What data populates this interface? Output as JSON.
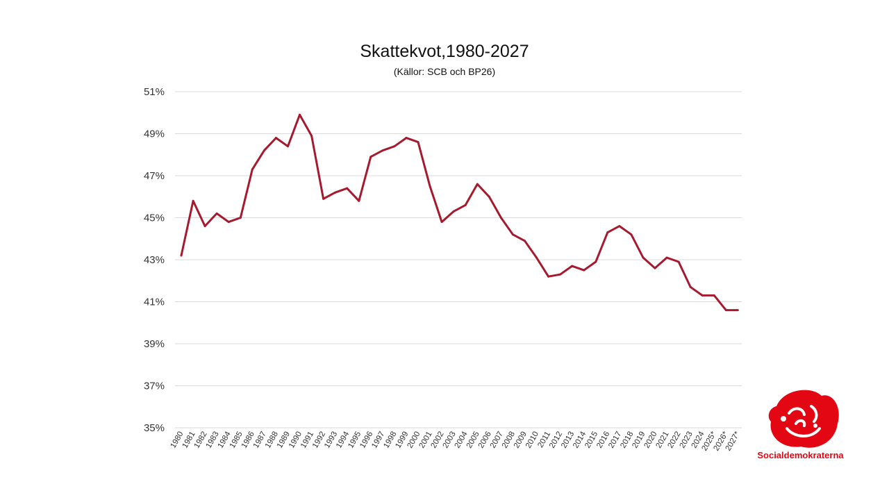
{
  "chart_data": {
    "type": "line",
    "title": "Skattekvot,1980-2027",
    "subtitle": "(Källor: SCB och BP26)",
    "xlabel": "",
    "ylabel": "",
    "ylim": [
      35,
      51
    ],
    "yticks": [
      "51%",
      "49%",
      "47%",
      "45%",
      "43%",
      "41%",
      "39%",
      "37%",
      "35%"
    ],
    "ytick_values": [
      51,
      49,
      47,
      45,
      43,
      41,
      39,
      37,
      35
    ],
    "grid": true,
    "line_color": "#a6192e",
    "categories": [
      "1980",
      "1981",
      "1982",
      "1983",
      "1984",
      "1985",
      "1986",
      "1987",
      "1988",
      "1989",
      "1990",
      "1991",
      "1992",
      "1993",
      "1994",
      "1995",
      "1996",
      "1997",
      "1998",
      "1999",
      "2000",
      "2001",
      "2002",
      "2003",
      "2004",
      "2005",
      "2006",
      "2007",
      "2008",
      "2009",
      "2010",
      "2011",
      "2012",
      "2013",
      "2014",
      "2015",
      "2016",
      "2017",
      "2018",
      "2019",
      "2020",
      "2021",
      "2022",
      "2023",
      "2024",
      "2025*",
      "2026*",
      "2027*"
    ],
    "values": [
      43.2,
      45.8,
      44.6,
      45.2,
      44.8,
      45.0,
      47.3,
      48.2,
      48.8,
      48.4,
      49.9,
      48.9,
      45.9,
      46.2,
      46.4,
      45.8,
      47.9,
      48.2,
      48.4,
      48.8,
      48.6,
      46.5,
      44.8,
      45.3,
      45.6,
      46.6,
      46.0,
      45.0,
      44.2,
      43.9,
      43.1,
      42.2,
      42.3,
      42.7,
      42.5,
      42.9,
      44.3,
      44.6,
      44.2,
      43.1,
      42.6,
      43.1,
      42.9,
      41.7,
      41.3,
      41.3,
      40.6,
      40.6
    ]
  },
  "logo": {
    "text": "Socialdemokraterna",
    "color": "#e30613"
  }
}
